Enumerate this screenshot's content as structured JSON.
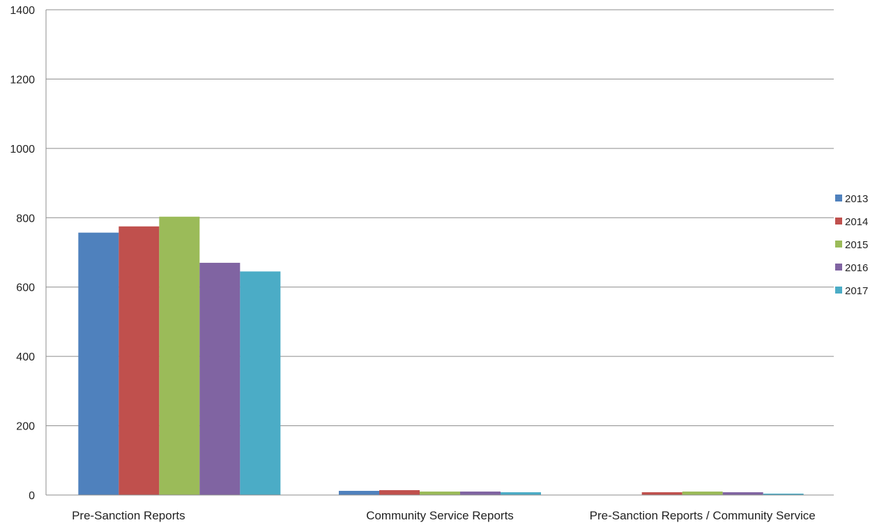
{
  "chart_data": {
    "type": "bar",
    "categories": [
      "Pre-Sanction Reports",
      "Community Service Reports",
      "Pre-Sanction Reports / Community Service"
    ],
    "series": [
      {
        "name": "2013",
        "values": [
          757,
          12,
          0
        ],
        "color": "#4F81BD"
      },
      {
        "name": "2014",
        "values": [
          775,
          14,
          8
        ],
        "color": "#C0504D"
      },
      {
        "name": "2015",
        "values": [
          803,
          10,
          10
        ],
        "color": "#9BBB59"
      },
      {
        "name": "2016",
        "values": [
          670,
          10,
          8
        ],
        "color": "#8064A2"
      },
      {
        "name": "2017",
        "values": [
          645,
          8,
          4
        ],
        "color": "#4BACC6"
      }
    ],
    "yticks": [
      0,
      200,
      400,
      600,
      800,
      1000,
      1200,
      1400
    ],
    "ylim": [
      0,
      1400
    ],
    "grid": true,
    "legend": "right",
    "xlabel": "",
    "ylabel": "",
    "title": ""
  }
}
